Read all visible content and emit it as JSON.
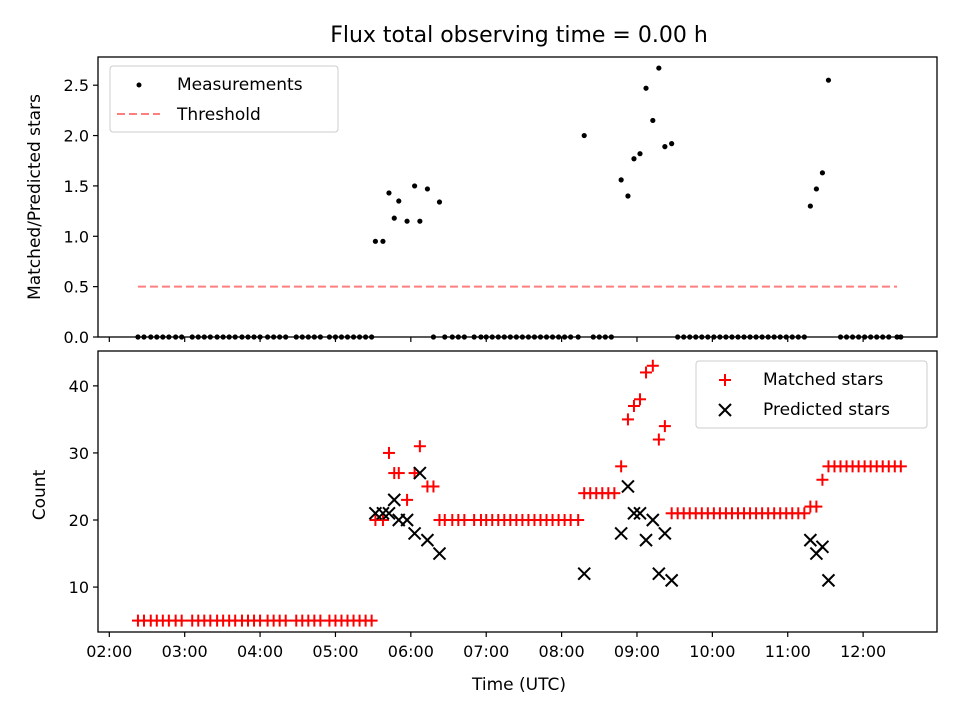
{
  "chart_data": [
    {
      "type": "scatter",
      "title": "Flux total observing time = 0.00 h",
      "xlabel": "",
      "ylabel": "Matched/Predicted stars",
      "xlim_hours": [
        1.85,
        12.98
      ],
      "ylim": [
        0,
        2.78
      ],
      "y_ticks": [
        "0.0",
        "0.5",
        "1.0",
        "1.5",
        "2.0",
        "2.5"
      ],
      "legend_position": "top-left",
      "series": [
        {
          "name": "Measurements",
          "marker": "dot",
          "color": "#000000",
          "points": [
            [
              2.38,
              0
            ],
            [
              2.46,
              0
            ],
            [
              2.55,
              0
            ],
            [
              2.63,
              0
            ],
            [
              2.71,
              0
            ],
            [
              2.79,
              0
            ],
            [
              2.88,
              0
            ],
            [
              2.96,
              0
            ],
            [
              3.1,
              0
            ],
            [
              3.18,
              0
            ],
            [
              3.26,
              0
            ],
            [
              3.34,
              0
            ],
            [
              3.43,
              0
            ],
            [
              3.51,
              0
            ],
            [
              3.59,
              0
            ],
            [
              3.67,
              0
            ],
            [
              3.76,
              0
            ],
            [
              3.84,
              0
            ],
            [
              3.92,
              0
            ],
            [
              4.0,
              0
            ],
            [
              4.1,
              0
            ],
            [
              4.18,
              0
            ],
            [
              4.26,
              0
            ],
            [
              4.34,
              0
            ],
            [
              4.48,
              0
            ],
            [
              4.56,
              0
            ],
            [
              4.64,
              0
            ],
            [
              4.72,
              0
            ],
            [
              4.8,
              0
            ],
            [
              4.92,
              0
            ],
            [
              5.0,
              0
            ],
            [
              5.08,
              0
            ],
            [
              5.16,
              0
            ],
            [
              5.24,
              0
            ],
            [
              5.32,
              0
            ],
            [
              5.4,
              0
            ],
            [
              5.48,
              0
            ],
            [
              5.53,
              0.95
            ],
            [
              5.63,
              0.95
            ],
            [
              5.71,
              1.43
            ],
            [
              5.78,
              1.18
            ],
            [
              5.84,
              1.35
            ],
            [
              5.95,
              1.15
            ],
            [
              6.05,
              1.5
            ],
            [
              6.12,
              1.15
            ],
            [
              6.22,
              1.47
            ],
            [
              6.38,
              1.34
            ],
            [
              6.3,
              0
            ],
            [
              6.45,
              0
            ],
            [
              6.55,
              0
            ],
            [
              6.63,
              0
            ],
            [
              6.71,
              0
            ],
            [
              6.84,
              0
            ],
            [
              6.93,
              0
            ],
            [
              7.0,
              0
            ],
            [
              7.08,
              0
            ],
            [
              7.16,
              0
            ],
            [
              7.24,
              0
            ],
            [
              7.32,
              0
            ],
            [
              7.4,
              0
            ],
            [
              7.48,
              0
            ],
            [
              7.56,
              0
            ],
            [
              7.64,
              0
            ],
            [
              7.72,
              0
            ],
            [
              7.8,
              0
            ],
            [
              7.88,
              0
            ],
            [
              7.96,
              0
            ],
            [
              8.04,
              0
            ],
            [
              8.12,
              0
            ],
            [
              8.22,
              0
            ],
            [
              8.3,
              2.0
            ],
            [
              8.42,
              0
            ],
            [
              8.5,
              0
            ],
            [
              8.58,
              0
            ],
            [
              8.66,
              0
            ],
            [
              8.79,
              1.56
            ],
            [
              8.88,
              1.4
            ],
            [
              8.96,
              1.77
            ],
            [
              9.04,
              1.82
            ],
            [
              9.12,
              2.47
            ],
            [
              9.21,
              2.15
            ],
            [
              9.29,
              2.67
            ],
            [
              9.37,
              1.89
            ],
            [
              9.46,
              1.92
            ],
            [
              9.54,
              0
            ],
            [
              9.62,
              0
            ],
            [
              9.7,
              0
            ],
            [
              9.78,
              0
            ],
            [
              9.86,
              0
            ],
            [
              9.94,
              0
            ],
            [
              10.02,
              0
            ],
            [
              10.1,
              0
            ],
            [
              10.18,
              0
            ],
            [
              10.26,
              0
            ],
            [
              10.34,
              0
            ],
            [
              10.42,
              0
            ],
            [
              10.5,
              0
            ],
            [
              10.58,
              0
            ],
            [
              10.66,
              0
            ],
            [
              10.74,
              0
            ],
            [
              10.82,
              0
            ],
            [
              10.9,
              0
            ],
            [
              10.98,
              0
            ],
            [
              11.06,
              0
            ],
            [
              11.14,
              0
            ],
            [
              11.22,
              0
            ],
            [
              11.3,
              1.3
            ],
            [
              11.38,
              1.47
            ],
            [
              11.46,
              1.63
            ],
            [
              11.54,
              2.55
            ],
            [
              11.7,
              0
            ],
            [
              11.78,
              0
            ],
            [
              11.86,
              0
            ],
            [
              11.94,
              0
            ],
            [
              12.02,
              0
            ],
            [
              12.1,
              0
            ],
            [
              12.18,
              0
            ],
            [
              12.26,
              0
            ],
            [
              12.34,
              0
            ],
            [
              12.45,
              0
            ],
            [
              12.5,
              0
            ]
          ]
        },
        {
          "name": "Threshold",
          "marker": "dashed-line",
          "color": "#ff7f7f",
          "points": [
            [
              2.38,
              0.5
            ],
            [
              12.45,
              0.5
            ]
          ]
        }
      ]
    },
    {
      "type": "scatter",
      "title": "",
      "xlabel": "Time (UTC)",
      "ylabel": "Count",
      "xlim_hours": [
        1.85,
        12.98
      ],
      "ylim": [
        3.3,
        45.2
      ],
      "x_ticks": [
        "02:00",
        "03:00",
        "04:00",
        "05:00",
        "06:00",
        "07:00",
        "08:00",
        "09:00",
        "10:00",
        "11:00",
        "12:00"
      ],
      "y_ticks": [
        "10",
        "20",
        "30",
        "40"
      ],
      "legend_position": "top-right",
      "series": [
        {
          "name": "Matched stars",
          "marker": "plus",
          "color": "#ff0000",
          "points": [
            [
              2.38,
              5
            ],
            [
              2.46,
              5
            ],
            [
              2.55,
              5
            ],
            [
              2.63,
              5
            ],
            [
              2.71,
              5
            ],
            [
              2.79,
              5
            ],
            [
              2.88,
              5
            ],
            [
              2.96,
              5
            ],
            [
              3.1,
              5
            ],
            [
              3.18,
              5
            ],
            [
              3.26,
              5
            ],
            [
              3.34,
              5
            ],
            [
              3.43,
              5
            ],
            [
              3.51,
              5
            ],
            [
              3.59,
              5
            ],
            [
              3.67,
              5
            ],
            [
              3.76,
              5
            ],
            [
              3.84,
              5
            ],
            [
              3.92,
              5
            ],
            [
              4.0,
              5
            ],
            [
              4.1,
              5
            ],
            [
              4.18,
              5
            ],
            [
              4.26,
              5
            ],
            [
              4.34,
              5
            ],
            [
              4.48,
              5
            ],
            [
              4.56,
              5
            ],
            [
              4.64,
              5
            ],
            [
              4.72,
              5
            ],
            [
              4.8,
              5
            ],
            [
              4.92,
              5
            ],
            [
              5.0,
              5
            ],
            [
              5.08,
              5
            ],
            [
              5.16,
              5
            ],
            [
              5.24,
              5
            ],
            [
              5.32,
              5
            ],
            [
              5.4,
              5
            ],
            [
              5.48,
              5
            ],
            [
              5.53,
              20
            ],
            [
              5.63,
              20
            ],
            [
              5.71,
              30
            ],
            [
              5.78,
              27
            ],
            [
              5.84,
              27
            ],
            [
              5.95,
              23
            ],
            [
              6.05,
              27
            ],
            [
              6.12,
              31
            ],
            [
              6.22,
              25
            ],
            [
              6.3,
              25
            ],
            [
              6.38,
              20
            ],
            [
              6.45,
              20
            ],
            [
              6.55,
              20
            ],
            [
              6.63,
              20
            ],
            [
              6.71,
              20
            ],
            [
              6.84,
              20
            ],
            [
              6.93,
              20
            ],
            [
              7.0,
              20
            ],
            [
              7.08,
              20
            ],
            [
              7.16,
              20
            ],
            [
              7.24,
              20
            ],
            [
              7.32,
              20
            ],
            [
              7.4,
              20
            ],
            [
              7.48,
              20
            ],
            [
              7.56,
              20
            ],
            [
              7.64,
              20
            ],
            [
              7.72,
              20
            ],
            [
              7.8,
              20
            ],
            [
              7.88,
              20
            ],
            [
              7.96,
              20
            ],
            [
              8.04,
              20
            ],
            [
              8.12,
              20
            ],
            [
              8.22,
              20
            ],
            [
              8.3,
              24
            ],
            [
              8.38,
              24
            ],
            [
              8.46,
              24
            ],
            [
              8.54,
              24
            ],
            [
              8.62,
              24
            ],
            [
              8.7,
              24
            ],
            [
              8.79,
              28
            ],
            [
              8.88,
              35
            ],
            [
              8.96,
              37
            ],
            [
              9.04,
              38
            ],
            [
              9.12,
              42
            ],
            [
              9.21,
              43
            ],
            [
              9.29,
              32
            ],
            [
              9.37,
              34
            ],
            [
              9.46,
              21
            ],
            [
              9.54,
              21
            ],
            [
              9.62,
              21
            ],
            [
              9.7,
              21
            ],
            [
              9.78,
              21
            ],
            [
              9.86,
              21
            ],
            [
              9.94,
              21
            ],
            [
              10.02,
              21
            ],
            [
              10.1,
              21
            ],
            [
              10.18,
              21
            ],
            [
              10.26,
              21
            ],
            [
              10.34,
              21
            ],
            [
              10.42,
              21
            ],
            [
              10.5,
              21
            ],
            [
              10.58,
              21
            ],
            [
              10.66,
              21
            ],
            [
              10.74,
              21
            ],
            [
              10.82,
              21
            ],
            [
              10.9,
              21
            ],
            [
              10.98,
              21
            ],
            [
              11.06,
              21
            ],
            [
              11.14,
              21
            ],
            [
              11.22,
              21
            ],
            [
              11.3,
              22
            ],
            [
              11.38,
              22
            ],
            [
              11.46,
              26
            ],
            [
              11.54,
              28
            ],
            [
              11.62,
              28
            ],
            [
              11.7,
              28
            ],
            [
              11.78,
              28
            ],
            [
              11.86,
              28
            ],
            [
              11.94,
              28
            ],
            [
              12.02,
              28
            ],
            [
              12.1,
              28
            ],
            [
              12.18,
              28
            ],
            [
              12.26,
              28
            ],
            [
              12.34,
              28
            ],
            [
              12.42,
              28
            ],
            [
              12.5,
              28
            ]
          ]
        },
        {
          "name": "Predicted stars",
          "marker": "x",
          "color": "#000000",
          "points": [
            [
              5.53,
              21
            ],
            [
              5.63,
              21
            ],
            [
              5.71,
              21
            ],
            [
              5.78,
              23
            ],
            [
              5.84,
              20
            ],
            [
              5.95,
              20
            ],
            [
              6.05,
              18
            ],
            [
              6.12,
              27
            ],
            [
              6.22,
              17
            ],
            [
              6.38,
              15
            ],
            [
              8.3,
              12
            ],
            [
              8.79,
              18
            ],
            [
              8.88,
              25
            ],
            [
              8.96,
              21
            ],
            [
              9.04,
              21
            ],
            [
              9.12,
              17
            ],
            [
              9.21,
              20
            ],
            [
              9.29,
              12
            ],
            [
              9.37,
              18
            ],
            [
              9.46,
              11
            ],
            [
              11.3,
              17
            ],
            [
              11.38,
              15
            ],
            [
              11.46,
              16
            ],
            [
              11.54,
              11
            ]
          ]
        }
      ]
    }
  ]
}
